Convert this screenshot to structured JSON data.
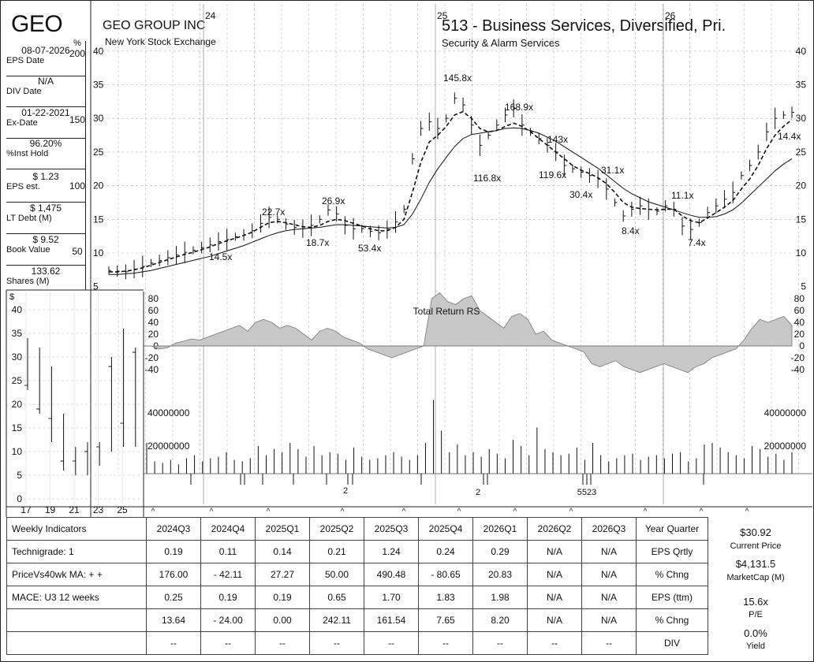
{
  "header": {
    "ticker": "GEO",
    "company": "GEO GROUP INC",
    "exchange": "New York Stock Exchange",
    "industry": "513 - Business Services, Diversified, Pri.",
    "sub_industry": "Security & Alarm Services"
  },
  "info": [
    {
      "value": "08-07-2026",
      "label": "EPS Date"
    },
    {
      "value": "N/A",
      "label": "DIV Date"
    },
    {
      "value": "01-22-2021",
      "label": "Ex-Date"
    },
    {
      "value": "96.20%",
      "label": "%Inst Hold"
    },
    {
      "value": "$ 1.23",
      "label": "EPS est."
    },
    {
      "value": "$ 1,475",
      "label": "LT Debt (M)"
    },
    {
      "value": "$ 9.52",
      "label": "Book Value"
    },
    {
      "value": "133.62",
      "label": "Shares (M)"
    }
  ],
  "chart_data": [
    {
      "type": "line",
      "name": "weekly-price",
      "year_labels": [
        "24",
        "25",
        "26"
      ],
      "y_ticks": [
        5,
        10,
        15,
        20,
        25,
        30,
        35,
        40
      ],
      "pct_ticks": [
        "%",
        "200",
        "150",
        "100",
        "50"
      ],
      "ylim": [
        5,
        40
      ],
      "series": [
        {
          "name": "Price",
          "values": [
            7.4,
            7.3,
            7.2,
            7.6,
            8.0,
            8.5,
            8.9,
            9.3,
            9.7,
            10.1,
            10.4,
            10.8,
            11.2,
            11.7,
            12.0,
            12.4,
            12.7,
            13.3,
            14.4,
            15.3,
            15.0,
            14.3,
            13.8,
            13.6,
            14.1,
            15.0,
            16.4,
            15.8,
            14.1,
            13.6,
            13.6,
            13.2,
            13.0,
            13.5,
            14.6,
            16.5,
            24.0,
            28.5,
            29.5,
            28.5,
            30.0,
            33.0,
            32.0,
            29.0,
            26.0,
            27.5,
            29.0,
            30.5,
            31.5,
            29.0,
            28.0,
            27.0,
            26.0,
            25.0,
            23.0,
            22.5,
            22.0,
            21.5,
            21.0,
            19.5,
            17.5,
            15.5,
            16.5,
            17.0,
            16.5,
            16.2,
            17.0,
            16.5,
            14.0,
            13.5,
            14.5,
            16.0,
            17.0,
            18.0,
            19.0,
            21.5,
            23.0,
            25.0,
            28.0,
            30.0,
            30.5,
            30.9
          ]
        },
        {
          "name": "Short MA",
          "style": "dashed",
          "values": [
            7.2,
            7.2,
            7.3,
            7.5,
            7.8,
            8.2,
            8.6,
            9.0,
            9.4,
            9.8,
            10.1,
            10.5,
            10.9,
            11.4,
            11.8,
            12.2,
            12.6,
            13.1,
            13.8,
            14.5,
            14.7,
            14.5,
            14.2,
            13.9,
            13.8,
            14.1,
            14.7,
            15.0,
            14.8,
            14.4,
            14.0,
            13.6,
            13.3,
            13.3,
            13.8,
            15.0,
            19.0,
            23.5,
            26.5,
            27.5,
            28.8,
            30.5,
            31.0,
            30.0,
            28.5,
            28.0,
            28.2,
            28.8,
            29.3,
            28.8,
            28.0,
            27.0,
            26.0,
            25.0,
            24.0,
            23.0,
            22.3,
            21.8,
            21.2,
            20.3,
            19.0,
            17.5,
            16.8,
            16.6,
            16.5,
            16.4,
            16.5,
            16.5,
            15.5,
            14.8,
            14.5,
            15.2,
            16.0,
            16.8,
            17.8,
            19.5,
            21.0,
            23.0,
            25.5,
            27.5,
            28.8,
            29.8
          ]
        },
        {
          "name": "Long MA",
          "style": "solid",
          "values": [
            6.8,
            6.8,
            6.9,
            7.0,
            7.2,
            7.4,
            7.7,
            8.0,
            8.3,
            8.6,
            8.9,
            9.2,
            9.5,
            9.9,
            10.3,
            10.7,
            11.1,
            11.6,
            12.1,
            12.6,
            13.0,
            13.3,
            13.5,
            13.6,
            13.7,
            13.8,
            14.0,
            14.2,
            14.2,
            14.1,
            14.0,
            13.9,
            13.8,
            13.7,
            13.8,
            14.2,
            15.8,
            18.0,
            20.5,
            22.5,
            24.2,
            25.8,
            27.0,
            27.6,
            27.8,
            28.0,
            28.2,
            28.5,
            28.6,
            28.5,
            28.2,
            27.8,
            27.2,
            26.6,
            25.8,
            25.0,
            24.2,
            23.4,
            22.6,
            21.6,
            20.6,
            19.6,
            18.8,
            18.2,
            17.6,
            17.2,
            16.8,
            16.4,
            16.0,
            15.6,
            15.3,
            15.3,
            15.4,
            15.8,
            16.4,
            17.4,
            18.6,
            19.8,
            21.0,
            22.2,
            23.2,
            24.0
          ]
        }
      ],
      "annotations": [
        "22.7x",
        "14.5x",
        "26.9x",
        "18.7x",
        "53.4x",
        "145.8x",
        "116.8x",
        "168.9x",
        "119.6x",
        "143x",
        "30.4x",
        "31.1x",
        "8.4x",
        "11.1x",
        "7.4x",
        "14.4x"
      ]
    },
    {
      "type": "area",
      "name": "Total Return RS",
      "title": "Total Return RS",
      "y_ticks": [
        80,
        60,
        40,
        20,
        0,
        -20,
        -40
      ],
      "ylim": [
        -50,
        90
      ],
      "values": [
        0,
        0,
        -5,
        -3,
        5,
        8,
        12,
        10,
        15,
        20,
        25,
        30,
        35,
        25,
        40,
        45,
        40,
        30,
        35,
        30,
        20,
        10,
        25,
        30,
        25,
        15,
        10,
        5,
        -5,
        -10,
        -15,
        -20,
        -15,
        -10,
        -5,
        0,
        80,
        90,
        75,
        70,
        80,
        85,
        60,
        50,
        40,
        30,
        50,
        55,
        45,
        20,
        25,
        10,
        5,
        0,
        -5,
        -10,
        -30,
        -35,
        -30,
        -25,
        -35,
        -40,
        -45,
        -40,
        -35,
        -30,
        -35,
        -40,
        -45,
        -35,
        -30,
        -20,
        -15,
        -10,
        -5,
        10,
        30,
        45,
        40,
        45,
        50,
        35
      ],
      "x_labels": [
        "17",
        "19",
        "21",
        "23",
        "25"
      ]
    },
    {
      "type": "bar",
      "name": "volume",
      "y_ticks": [
        "40000000",
        "20000000"
      ],
      "ylim": [
        0,
        50000000
      ],
      "values": [
        20,
        8,
        7,
        9,
        6,
        10,
        12,
        8,
        10,
        11,
        14,
        9,
        8,
        10,
        18,
        12,
        16,
        14,
        20,
        16,
        11,
        18,
        12,
        14,
        13,
        9,
        17,
        11,
        9,
        10,
        12,
        14,
        11,
        9,
        12,
        20,
        48,
        28,
        14,
        19,
        12,
        14,
        11,
        16,
        13,
        10,
        22,
        18,
        12,
        30,
        16,
        14,
        12,
        13,
        17,
        9,
        20,
        12,
        8,
        10,
        12,
        13,
        9,
        11,
        12,
        10,
        13,
        14,
        8,
        10,
        19,
        20,
        17,
        14,
        12,
        10,
        18,
        16,
        11,
        13,
        9,
        14
      ],
      "quarter_marks": [
        "2",
        "2",
        "5523"
      ]
    },
    {
      "type": "bar",
      "name": "inset-price-history",
      "y_ticks": [
        "0",
        "5",
        "10",
        "15",
        "20",
        "25",
        "30",
        "35",
        "40"
      ],
      "unit": "$",
      "x_labels": [
        "17",
        "19",
        "21",
        "23",
        "25"
      ],
      "ylim": [
        0,
        40
      ],
      "series": [
        {
          "name": "high",
          "values": [
            34,
            32,
            28,
            18,
            11,
            12,
            12,
            30,
            36,
            32
          ]
        },
        {
          "name": "low",
          "values": [
            23,
            18,
            12,
            6,
            5,
            5,
            7,
            10,
            11,
            11
          ]
        },
        {
          "name": "close",
          "values": [
            24,
            19,
            17,
            8,
            8,
            10,
            11,
            28,
            16,
            31
          ]
        }
      ]
    }
  ],
  "table": {
    "headers": [
      "Weekly Indicators",
      "2024Q3",
      "2024Q4",
      "2025Q1",
      "2025Q2",
      "2025Q3",
      "2025Q4",
      "2026Q1",
      "2026Q2",
      "2026Q3",
      "Year Quarter"
    ],
    "rows": [
      {
        "label": "Technigrade: 1",
        "cells": [
          "0.19",
          "0.11",
          "0.14",
          "0.21",
          "1.24",
          "0.24",
          "0.29",
          "N/A",
          "N/A"
        ],
        "tag": "EPS Qrtly"
      },
      {
        "label": "PriceVs40wk MA:  + +",
        "cells": [
          "176.00",
          "- 42.11",
          "27.27",
          "50.00",
          "490.48",
          "- 80.65",
          "20.83",
          "N/A",
          "N/A"
        ],
        "tag": "% Chng"
      },
      {
        "label": "MACE: U3  12 weeks",
        "cells": [
          "0.25",
          "0.19",
          "0.19",
          "0.65",
          "1.70",
          "1.83",
          "1.98",
          "N/A",
          "N/A"
        ],
        "tag": "EPS (ttm)"
      },
      {
        "label": "",
        "cells": [
          "13.64",
          "- 24.00",
          "0.00",
          "242.11",
          "161.54",
          "7.65",
          "8.20",
          "N/A",
          "N/A"
        ],
        "tag": "% Chng"
      },
      {
        "label": "",
        "cells": [
          "--",
          "--",
          "--",
          "--",
          "--",
          "--",
          "--",
          "--",
          "--"
        ],
        "tag": "DIV"
      }
    ]
  },
  "price_box": {
    "current_price": "$30.92",
    "current_price_label": "Current Price",
    "market_cap": "$4,131.5",
    "market_cap_label": "MarketCap (M)",
    "pe": "15.6x",
    "pe_label": "P/E",
    "yield": "0.0%",
    "yield_label": "Yield"
  },
  "colors": {
    "rs_fill": "#c8c8c8",
    "ink": "#111111"
  }
}
